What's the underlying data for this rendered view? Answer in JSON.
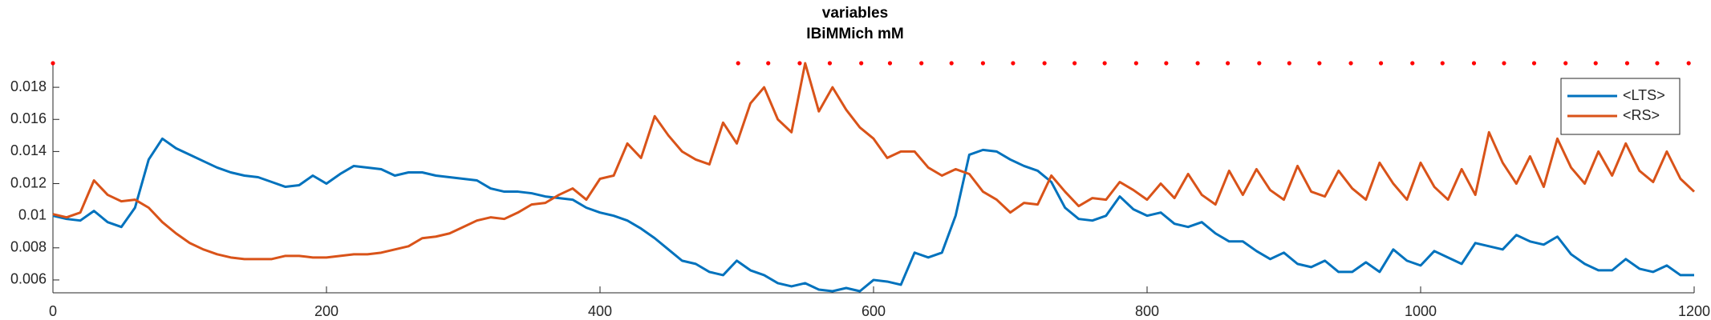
{
  "chart_data": {
    "type": "line",
    "title": "variables",
    "subtitle": "IBiMMich mM",
    "x": [
      0,
      10,
      20,
      30,
      40,
      50,
      60,
      70,
      80,
      90,
      100,
      110,
      120,
      130,
      140,
      150,
      160,
      170,
      180,
      190,
      200,
      210,
      220,
      230,
      240,
      250,
      260,
      270,
      280,
      290,
      300,
      310,
      320,
      330,
      340,
      350,
      360,
      370,
      380,
      390,
      400,
      410,
      420,
      430,
      440,
      450,
      460,
      470,
      480,
      490,
      500,
      510,
      520,
      530,
      540,
      550,
      560,
      570,
      580,
      590,
      600,
      610,
      620,
      630,
      640,
      650,
      660,
      670,
      680,
      690,
      700,
      710,
      720,
      730,
      740,
      750,
      760,
      770,
      780,
      790,
      800,
      810,
      820,
      830,
      840,
      850,
      860,
      870,
      880,
      890,
      900,
      910,
      920,
      930,
      940,
      950,
      960,
      970,
      980,
      990,
      1000,
      1010,
      1020,
      1030,
      1040,
      1050,
      1060,
      1070,
      1080,
      1090,
      1100,
      1110,
      1120,
      1130,
      1140,
      1150,
      1160,
      1170,
      1180,
      1190,
      1200
    ],
    "series": [
      {
        "name": "<LTS>",
        "color": "#0072bd",
        "values": [
          0.01,
          0.0098,
          0.0097,
          0.0103,
          0.0096,
          0.0093,
          0.0105,
          0.0135,
          0.0148,
          0.0142,
          0.0138,
          0.0134,
          0.013,
          0.0127,
          0.0125,
          0.0124,
          0.0121,
          0.0118,
          0.0119,
          0.0125,
          0.012,
          0.0126,
          0.0131,
          0.013,
          0.0129,
          0.0125,
          0.0127,
          0.0127,
          0.0125,
          0.0124,
          0.0123,
          0.0122,
          0.0117,
          0.0115,
          0.0115,
          0.0114,
          0.0112,
          0.0111,
          0.011,
          0.0105,
          0.0102,
          0.01,
          0.0097,
          0.0092,
          0.0086,
          0.0079,
          0.0072,
          0.007,
          0.0065,
          0.0063,
          0.0072,
          0.0066,
          0.0063,
          0.0058,
          0.0056,
          0.0058,
          0.0054,
          0.0053,
          0.0055,
          0.0053,
          0.006,
          0.0059,
          0.0057,
          0.0077,
          0.0074,
          0.0077,
          0.01,
          0.0138,
          0.0141,
          0.014,
          0.0135,
          0.0131,
          0.0128,
          0.0121,
          0.0105,
          0.0098,
          0.0097,
          0.01,
          0.0112,
          0.0104,
          0.01,
          0.0102,
          0.0095,
          0.0093,
          0.0096,
          0.0089,
          0.0084,
          0.0084,
          0.0078,
          0.0073,
          0.0077,
          0.007,
          0.0068,
          0.0072,
          0.0065,
          0.0065,
          0.0071,
          0.0065,
          0.0079,
          0.0072,
          0.0069,
          0.0078,
          0.0074,
          0.007,
          0.0083,
          0.0081,
          0.0079,
          0.0088,
          0.0084,
          0.0082,
          0.0087,
          0.0076,
          0.007,
          0.0066,
          0.0066,
          0.0073,
          0.0067,
          0.0065,
          0.0069,
          0.0063,
          0.0063
        ]
      },
      {
        "name": "<RS>",
        "color": "#d95319",
        "values": [
          0.0101,
          0.0099,
          0.0102,
          0.0122,
          0.0113,
          0.0109,
          0.011,
          0.0105,
          0.0096,
          0.0089,
          0.0083,
          0.0079,
          0.0076,
          0.0074,
          0.0073,
          0.0073,
          0.0073,
          0.0075,
          0.0075,
          0.0074,
          0.0074,
          0.0075,
          0.0076,
          0.0076,
          0.0077,
          0.0079,
          0.0081,
          0.0086,
          0.0087,
          0.0089,
          0.0093,
          0.0097,
          0.0099,
          0.0098,
          0.0102,
          0.0107,
          0.0108,
          0.0113,
          0.0117,
          0.011,
          0.0123,
          0.0125,
          0.0145,
          0.0136,
          0.0162,
          0.015,
          0.014,
          0.0135,
          0.0132,
          0.0158,
          0.0145,
          0.017,
          0.018,
          0.016,
          0.0152,
          0.0195,
          0.0165,
          0.018,
          0.0166,
          0.0155,
          0.0148,
          0.0136,
          0.014,
          0.014,
          0.013,
          0.0125,
          0.0129,
          0.0126,
          0.0115,
          0.011,
          0.0102,
          0.0108,
          0.0107,
          0.0125,
          0.0115,
          0.0106,
          0.0111,
          0.011,
          0.0121,
          0.0116,
          0.011,
          0.012,
          0.0111,
          0.0126,
          0.0113,
          0.0107,
          0.0128,
          0.0113,
          0.0129,
          0.0116,
          0.011,
          0.0131,
          0.0115,
          0.0112,
          0.0128,
          0.0117,
          0.011,
          0.0133,
          0.012,
          0.011,
          0.0133,
          0.0118,
          0.011,
          0.0129,
          0.0113,
          0.0152,
          0.0133,
          0.012,
          0.0137,
          0.0118,
          0.0148,
          0.013,
          0.012,
          0.014,
          0.0125,
          0.0145,
          0.0128,
          0.0121,
          0.014,
          0.0123,
          0.0115
        ]
      }
    ],
    "events": {
      "color": "#ff0000",
      "x": [
        0,
        501,
        523,
        546,
        568,
        591,
        612,
        635,
        657,
        680,
        702,
        725,
        747,
        769,
        792,
        814,
        837,
        859,
        882,
        904,
        926,
        949,
        971,
        994,
        1016,
        1039,
        1061,
        1083,
        1106,
        1128,
        1151,
        1173,
        1196
      ],
      "values": [
        0.0195,
        0.0195,
        0.0195,
        0.0195,
        0.0195,
        0.0195,
        0.0195,
        0.0195,
        0.0195,
        0.0195,
        0.0195,
        0.0195,
        0.0195,
        0.0195,
        0.0195,
        0.0195,
        0.0195,
        0.0195,
        0.0195,
        0.0195,
        0.0195,
        0.0195,
        0.0195,
        0.0195,
        0.0195,
        0.0195,
        0.0195,
        0.0195,
        0.0195,
        0.0195,
        0.0195,
        0.0195,
        0.0195
      ]
    },
    "xlim": [
      0,
      1200
    ],
    "xticks": [
      0,
      200,
      400,
      600,
      800,
      1000,
      1200
    ],
    "ylim": [
      0.0052,
      0.0195
    ],
    "yticks": [
      0.006,
      0.008,
      0.01,
      0.012,
      0.014,
      0.016,
      0.018
    ],
    "legend": "upper right",
    "grid": false
  }
}
